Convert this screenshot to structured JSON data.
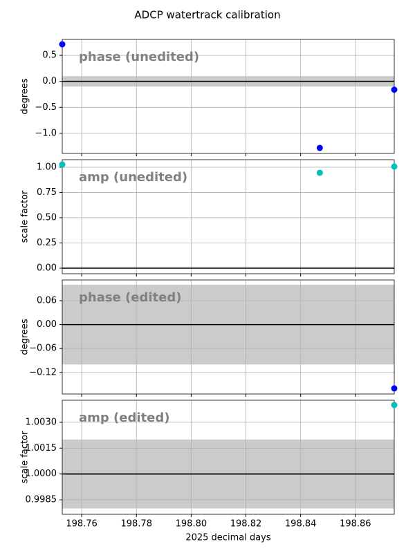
{
  "title": "ADCP watertrack calibration",
  "chart_data": [
    {
      "type": "scatter",
      "annotation": "phase (unedited)",
      "ylabel": "degrees",
      "xlim": [
        198.7529,
        198.8742
      ],
      "ylim": [
        -1.387,
        0.807
      ],
      "yticks": [
        0.5,
        {
          "value": 0,
          "label": "0.0"
        },
        {
          "value": -0.5,
          "label": "−0.5"
        },
        {
          "value": -1,
          "label": "−1.0"
        }
      ],
      "band": [
        -0.1,
        0.1
      ],
      "band_color": "#cbcbcb",
      "hline": 0,
      "grid": true,
      "series": [
        {
          "color": "#0000ff",
          "x": [
            198.7529,
            198.847,
            198.8742
          ],
          "values": [
            0.713,
            -1.28,
            -0.16
          ]
        }
      ]
    },
    {
      "type": "scatter",
      "annotation": "amp (unedited)",
      "ylabel": "scale factor",
      "xlim": [
        198.7529,
        198.8742
      ],
      "ylim": [
        -0.055,
        1.075
      ],
      "yticks": [
        {
          "value": 0,
          "label": "0.00"
        },
        0.25,
        {
          "value": 0.5,
          "label": "0.50"
        },
        0.75,
        {
          "value": 1,
          "label": "1.00"
        }
      ],
      "hline": 0,
      "grid": true,
      "series": [
        {
          "color": "#00bfbf",
          "x": [
            198.7529,
            198.847,
            198.8742
          ],
          "values": [
            1.027,
            0.945,
            1.007
          ]
        }
      ]
    },
    {
      "type": "scatter",
      "annotation": "phase (edited)",
      "ylabel": "degrees",
      "xlim": [
        198.7529,
        198.8742
      ],
      "ylim": [
        -0.174,
        0.112
      ],
      "yticks": [
        0.06,
        {
          "value": 0,
          "label": "0.00"
        },
        {
          "value": -0.06,
          "label": "−0.06"
        },
        {
          "value": -0.12,
          "label": "−0.12"
        }
      ],
      "band": [
        -0.1,
        0.1
      ],
      "band_color": "#cbcbcb",
      "hline": 0,
      "grid": true,
      "series": [
        {
          "color": "#0000ff",
          "x": [
            198.8742
          ],
          "values": [
            -0.16
          ]
        }
      ]
    },
    {
      "type": "scatter",
      "annotation": "amp (edited)",
      "ylabel": "scale factor",
      "xlabel": "2025 decimal days",
      "xlim": [
        198.7529,
        198.8742
      ],
      "ylim": [
        0.99766,
        1.00428
      ],
      "xticks": [
        198.76,
        198.78,
        {
          "value": 198.8,
          "label": "198.80"
        },
        198.82,
        198.84,
        198.86
      ],
      "yticks": [
        {
          "value": 0.9985,
          "label": "0.9985"
        },
        {
          "value": 1,
          "label": "1.0000"
        },
        {
          "value": 1.0015,
          "label": "1.0015"
        },
        {
          "value": 1.003,
          "label": "1.0030"
        }
      ],
      "band": [
        0.998,
        1.002
      ],
      "band_color": "#cbcbcb",
      "hline": 1,
      "grid": true,
      "series": [
        {
          "color": "#00bfbf",
          "x": [
            198.8742
          ],
          "values": [
            1.004
          ]
        }
      ]
    }
  ]
}
